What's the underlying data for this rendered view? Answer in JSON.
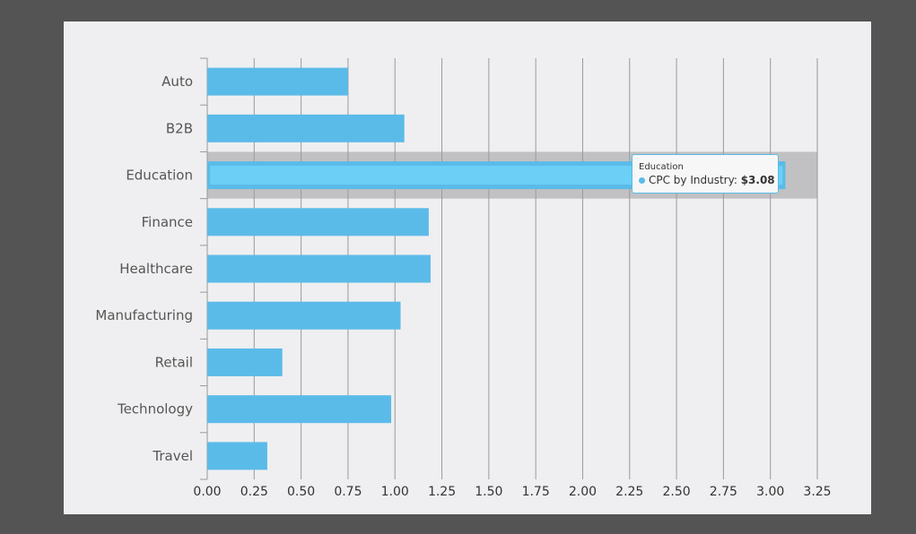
{
  "chart_data": {
    "type": "bar",
    "orientation": "horizontal",
    "categories": [
      "Auto",
      "B2B",
      "Education",
      "Finance",
      "Healthcare",
      "Manufacturing",
      "Retail",
      "Technology",
      "Travel"
    ],
    "series": [
      {
        "name": "CPC by Industry",
        "values": [
          0.75,
          1.05,
          3.08,
          1.18,
          1.19,
          1.03,
          0.4,
          0.98,
          0.32
        ]
      }
    ],
    "xlim": [
      0,
      3.25
    ],
    "xticks": [
      "0.00",
      "0.25",
      "0.50",
      "0.75",
      "1.00",
      "1.25",
      "1.50",
      "1.75",
      "2.00",
      "2.25",
      "2.50",
      "2.75",
      "3.00",
      "3.25"
    ],
    "grid": true,
    "highlighted_category": "Education",
    "colors": {
      "bar": "#5bbbe8",
      "highlight_bar": "#6ccff6",
      "highlight_band": "#c1c1c3",
      "grid": "#9a9a9a"
    }
  },
  "tooltip": {
    "title": "Education",
    "series": "CPC by Industry:",
    "value": "$3.08"
  }
}
